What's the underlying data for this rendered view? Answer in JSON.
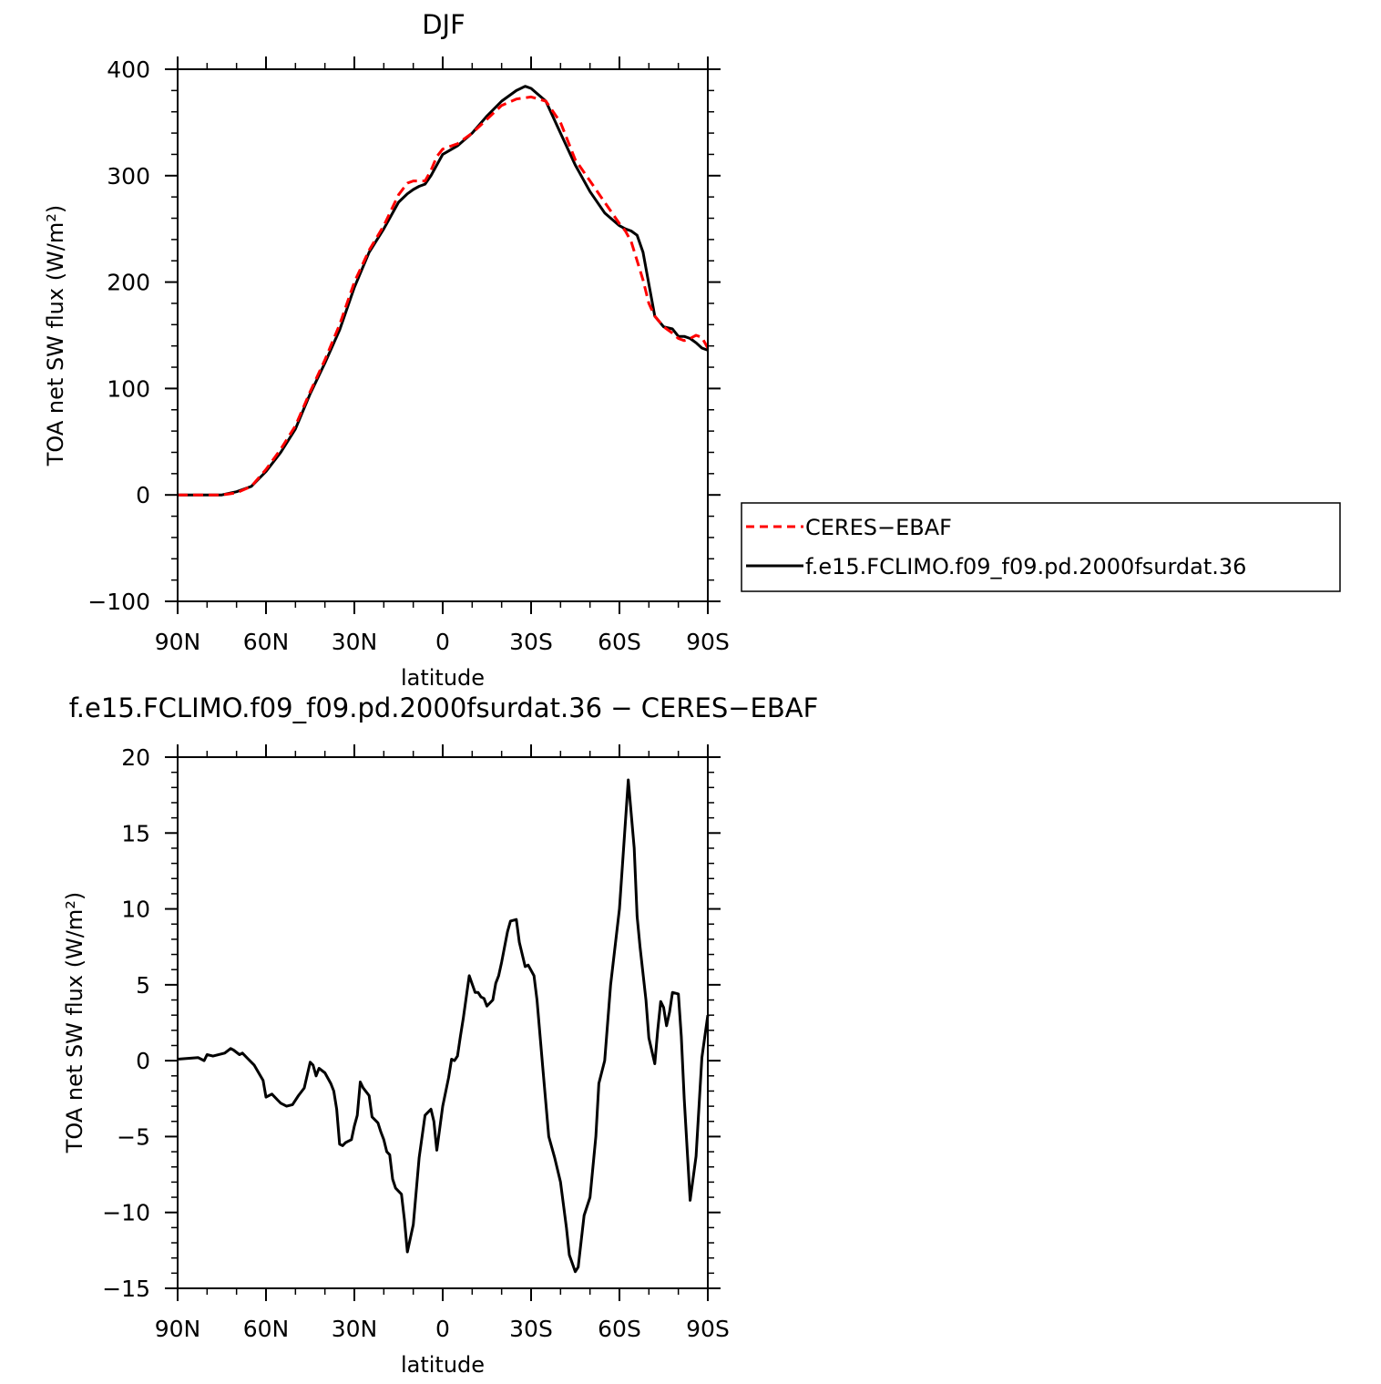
{
  "chart_data": [
    {
      "type": "line",
      "title": "DJF",
      "xlabel": "latitude",
      "ylabel": "TOA net SW flux (W/m²)",
      "x_ticks": [
        "90N",
        "60N",
        "30N",
        "0",
        "30S",
        "60S",
        "90S"
      ],
      "y_ticks": [
        "400",
        "300",
        "200",
        "100",
        "0",
        "−100"
      ],
      "xlim": [
        -90,
        90
      ],
      "ylim": [
        -100,
        400
      ],
      "x_axis_note": "latitude from 90N (-90) to 90S (+90)",
      "legend_position": "right",
      "series": [
        {
          "name": "CERES−EBAF",
          "color": "#ff0000",
          "dash": "dashed",
          "x": [
            -90,
            -80,
            -75,
            -70,
            -65,
            -60,
            -55,
            -50,
            -45,
            -40,
            -35,
            -30,
            -25,
            -20,
            -15,
            -12,
            -10,
            -8,
            -6,
            -4,
            -2,
            0,
            5,
            10,
            15,
            20,
            25,
            30,
            35,
            40,
            45,
            50,
            55,
            60,
            62,
            64,
            66,
            68,
            70,
            72,
            75,
            78,
            80,
            82,
            84,
            86,
            88,
            90
          ],
          "y": [
            0,
            0,
            0,
            2,
            8,
            24,
            43,
            65,
            97,
            127,
            160,
            200,
            230,
            253,
            282,
            293,
            295,
            295,
            295,
            305,
            318,
            325,
            330,
            340,
            353,
            366,
            372,
            374,
            370,
            350,
            315,
            295,
            275,
            255,
            248,
            238,
            220,
            202,
            180,
            168,
            158,
            152,
            147,
            145,
            147,
            150,
            148,
            138
          ]
        },
        {
          "name": "f.e15.FCLIMO.f09_f09.pd.2000fsurdat.36",
          "color": "#000000",
          "dash": "solid",
          "x": [
            -90,
            -80,
            -75,
            -70,
            -65,
            -60,
            -55,
            -50,
            -45,
            -40,
            -35,
            -30,
            -25,
            -20,
            -15,
            -12,
            -10,
            -8,
            -6,
            -4,
            -2,
            0,
            5,
            10,
            15,
            20,
            25,
            28,
            30,
            35,
            40,
            45,
            50,
            55,
            60,
            62,
            64,
            66,
            68,
            70,
            72,
            75,
            78,
            80,
            82,
            84,
            86,
            88,
            90
          ],
          "y": [
            0,
            0,
            0,
            3,
            8,
            22,
            40,
            62,
            95,
            124,
            155,
            195,
            228,
            250,
            275,
            283,
            287,
            290,
            292,
            300,
            310,
            320,
            328,
            340,
            356,
            370,
            380,
            384,
            382,
            370,
            340,
            310,
            285,
            265,
            253,
            250,
            248,
            244,
            228,
            198,
            168,
            158,
            156,
            149,
            149,
            147,
            143,
            138,
            136
          ]
        }
      ]
    },
    {
      "type": "line",
      "title": "f.e15.FCLIMO.f09_f09.pd.2000fsurdat.36 − CERES−EBAF",
      "xlabel": "latitude",
      "ylabel": "TOA net SW flux (W/m²)",
      "x_ticks": [
        "90N",
        "60N",
        "30N",
        "0",
        "30S",
        "60S",
        "90S"
      ],
      "y_ticks": [
        "20",
        "15",
        "10",
        "5",
        "0",
        "−5",
        "−10",
        "−15"
      ],
      "xlim": [
        -90,
        90
      ],
      "ylim": [
        -15,
        20
      ],
      "series": [
        {
          "name": "",
          "color": "#000000",
          "dash": "solid",
          "x": [
            -90,
            -83,
            -81,
            -80,
            -78,
            -74,
            -72,
            -71,
            -69,
            -68,
            -66,
            -64,
            -61,
            -60,
            -58,
            -56,
            -55,
            -53,
            -51,
            -49,
            -47,
            -45,
            -44,
            -43,
            -42,
            -40,
            -38,
            -37,
            -36,
            -35,
            -34,
            -33,
            -31,
            -30,
            -29,
            -28,
            -27,
            -25,
            -24,
            -22,
            -21,
            -20,
            -19,
            -18,
            -17,
            -16,
            -14,
            -13,
            -12,
            -10,
            -8,
            -6,
            -4,
            -3,
            -2,
            0,
            2,
            3,
            4,
            5,
            6,
            7,
            9,
            11,
            12,
            13,
            14,
            15,
            17,
            18,
            19,
            20,
            21,
            22,
            23,
            25,
            26,
            28,
            29,
            31,
            32,
            34,
            36,
            38,
            40,
            42,
            43,
            45,
            46,
            48,
            50,
            52,
            53,
            55,
            57,
            60,
            63,
            65,
            66,
            67,
            69,
            70,
            72,
            73,
            74,
            75,
            76,
            77,
            78,
            80,
            81,
            82,
            84,
            86,
            88,
            90
          ],
          "y": [
            0.1,
            0.2,
            0,
            0.4,
            0.3,
            0.5,
            0.8,
            0.7,
            0.4,
            0.5,
            0.1,
            -0.3,
            -1.3,
            -2.4,
            -2.2,
            -2.6,
            -2.8,
            -3.0,
            -2.9,
            -2.3,
            -1.8,
            -0.1,
            -0.3,
            -1.0,
            -0.5,
            -0.8,
            -1.5,
            -2.0,
            -3.2,
            -5.5,
            -5.6,
            -5.4,
            -5.2,
            -4.3,
            -3.6,
            -1.4,
            -1.8,
            -2.3,
            -3.7,
            -4.1,
            -4.7,
            -5.2,
            -6.0,
            -6.2,
            -7.8,
            -8.4,
            -8.8,
            -10.5,
            -12.6,
            -10.8,
            -6.4,
            -3.6,
            -3.2,
            -4.0,
            -5.9,
            -3.0,
            -1.1,
            0.1,
            0,
            0.3,
            1.6,
            2.8,
            5.6,
            4.5,
            4.5,
            4.2,
            4.1,
            3.6,
            4.0,
            5.1,
            5.6,
            6.5,
            7.5,
            8.5,
            9.2,
            9.3,
            7.8,
            6.2,
            6.3,
            5.6,
            4.0,
            -0.5,
            -5.0,
            -6.4,
            -8.0,
            -11.0,
            -12.8,
            -13.9,
            -13.6,
            -10.2,
            -9.0,
            -5.0,
            -1.5,
            0.0,
            5.0,
            10.0,
            18.5,
            14.0,
            9.5,
            7.5,
            4.0,
            1.5,
            -0.2,
            2.0,
            3.9,
            3.5,
            2.3,
            3.2,
            4.5,
            4.4,
            1.6,
            -2.5,
            -9.2,
            -6.3,
            0.2,
            3.0
          ]
        }
      ]
    }
  ]
}
